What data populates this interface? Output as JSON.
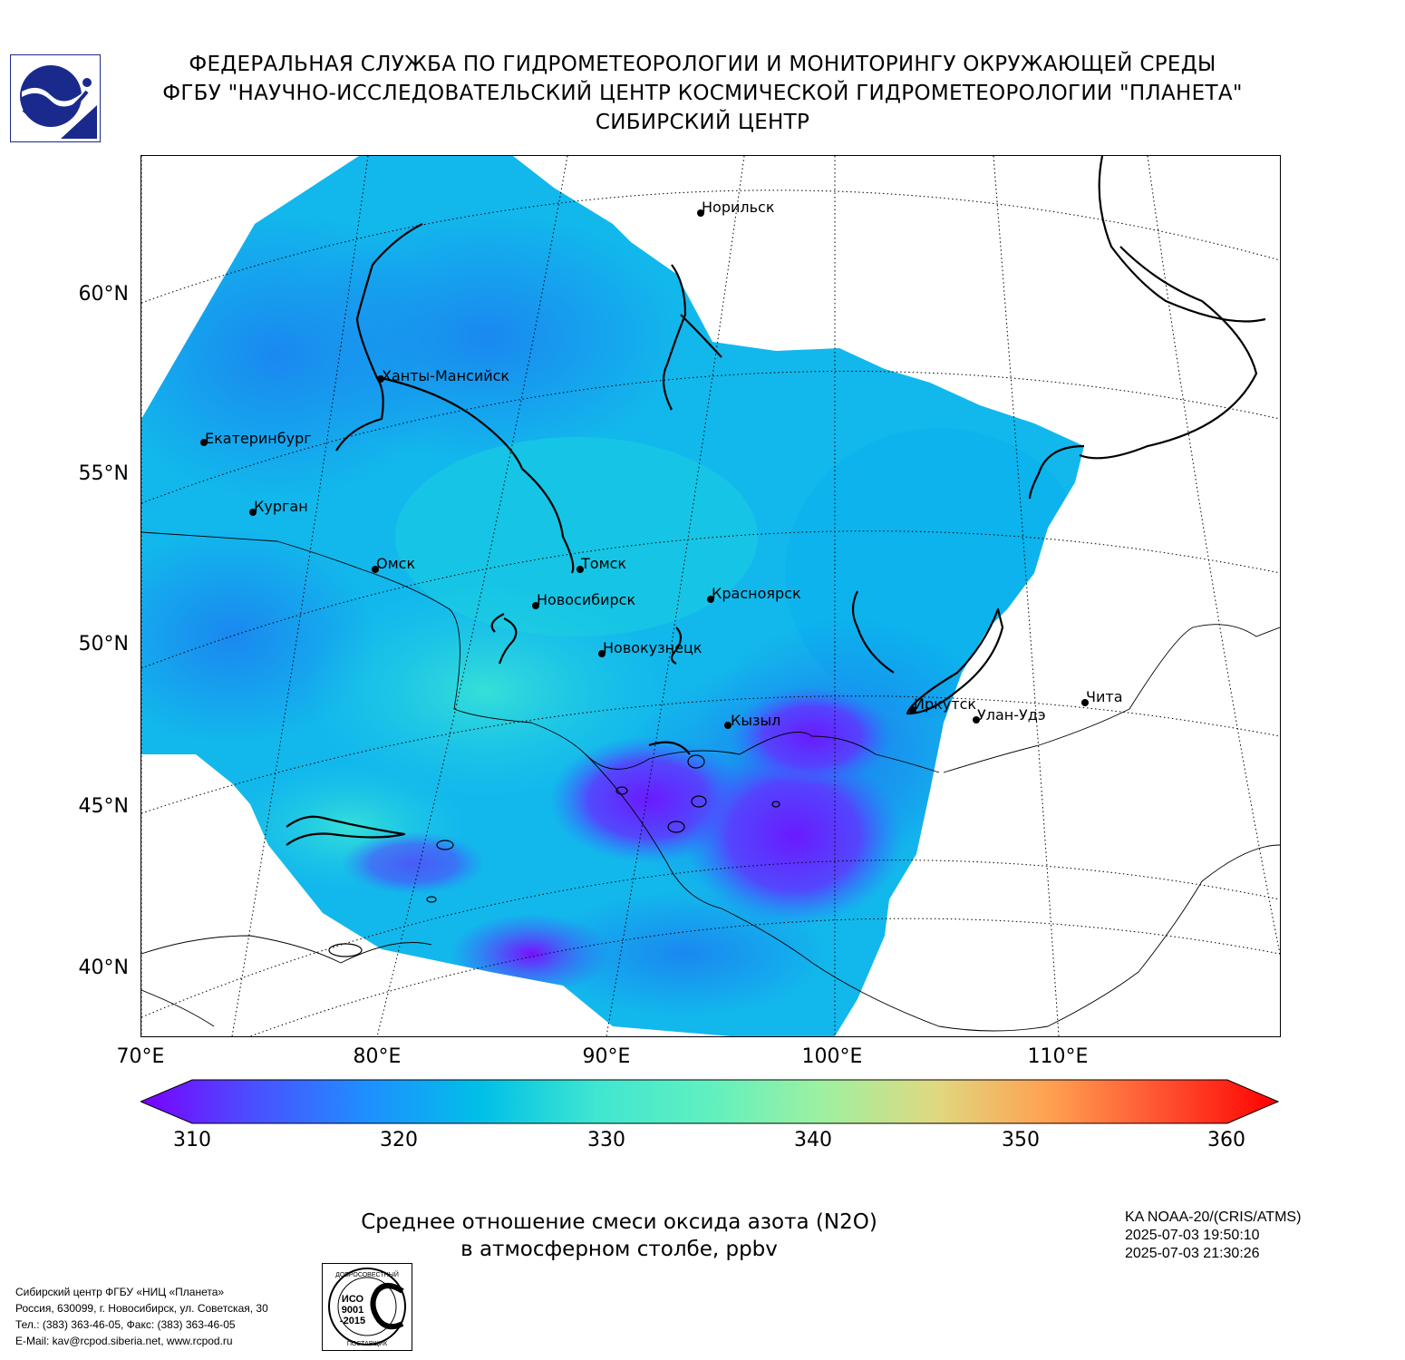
{
  "header": {
    "line1": "ФЕДЕРАЛЬНАЯ СЛУЖБА ПО ГИДРОМЕТЕОРОЛОГИИ И МОНИТОРИНГУ ОКРУЖАЮЩЕЙ СРЕДЫ",
    "line2": "ФГБУ \"НАУЧНО-ИССЛЕДОВАТЕЛЬСКИЙ ЦЕНТР КОСМИЧЕСКОЙ ГИДРОМЕТЕОРОЛОГИИ \"ПЛАНЕТА\"",
    "line3": "СИБИРСКИЙ ЦЕНТР"
  },
  "map": {
    "lat_labels": [
      "60°N",
      "55°N",
      "50°N",
      "45°N",
      "40°N"
    ],
    "lon_labels": [
      "70°E",
      "80°E",
      "90°E",
      "100°E",
      "110°E"
    ],
    "cities": [
      {
        "name": "Норильск"
      },
      {
        "name": "Ханты-Мансийск"
      },
      {
        "name": "Екатеринбург"
      },
      {
        "name": "Курган"
      },
      {
        "name": "Омск"
      },
      {
        "name": "Томск"
      },
      {
        "name": "Новосибирск"
      },
      {
        "name": "Красноярск"
      },
      {
        "name": "Новокузнецк"
      },
      {
        "name": "Иркутск"
      },
      {
        "name": "Улан-Удэ"
      },
      {
        "name": "Чита"
      },
      {
        "name": "Кызыл"
      }
    ],
    "colors": {
      "low": "#7a00ff",
      "mid_low": "#1e90ff",
      "mid": "#00c0e8",
      "mid_high": "#3fe6d0",
      "high": "#ff0000"
    }
  },
  "colorbar": {
    "min": 310,
    "max": 360,
    "ticks": [
      "310",
      "320",
      "330",
      "340",
      "350",
      "360"
    ]
  },
  "caption": {
    "line1": "Среднее отношение смеси оксида азота (N2O)",
    "line2": "в атмосферном столбе, ppbv"
  },
  "satellite": {
    "name": "KA NOAA-20/(CRIS/ATMS)",
    "time_start": "2025-07-03 19:50:10",
    "time_end": "2025-07-03 21:30:26"
  },
  "footer": {
    "line1": "Сибирский центр ФГБУ «НИЦ «Планета»",
    "line2": "Россия, 630099, г. Новосибирск, ул. Советская, 30",
    "line3": "Тел.: (383) 363-46-05, Факс: (383) 363-46-05",
    "line4": "E-Mail: kav@rcpod.siberia.net, www.rcpod.ru"
  },
  "iso_stamp": {
    "top_text": "ДОБРОСОВЕСТНЫЙ",
    "middle_text": [
      "ИСО",
      "9001",
      "-2015"
    ],
    "bottom_text": "ПОСТАВЩИК"
  },
  "logo": {
    "icon": "planeta-logo"
  }
}
